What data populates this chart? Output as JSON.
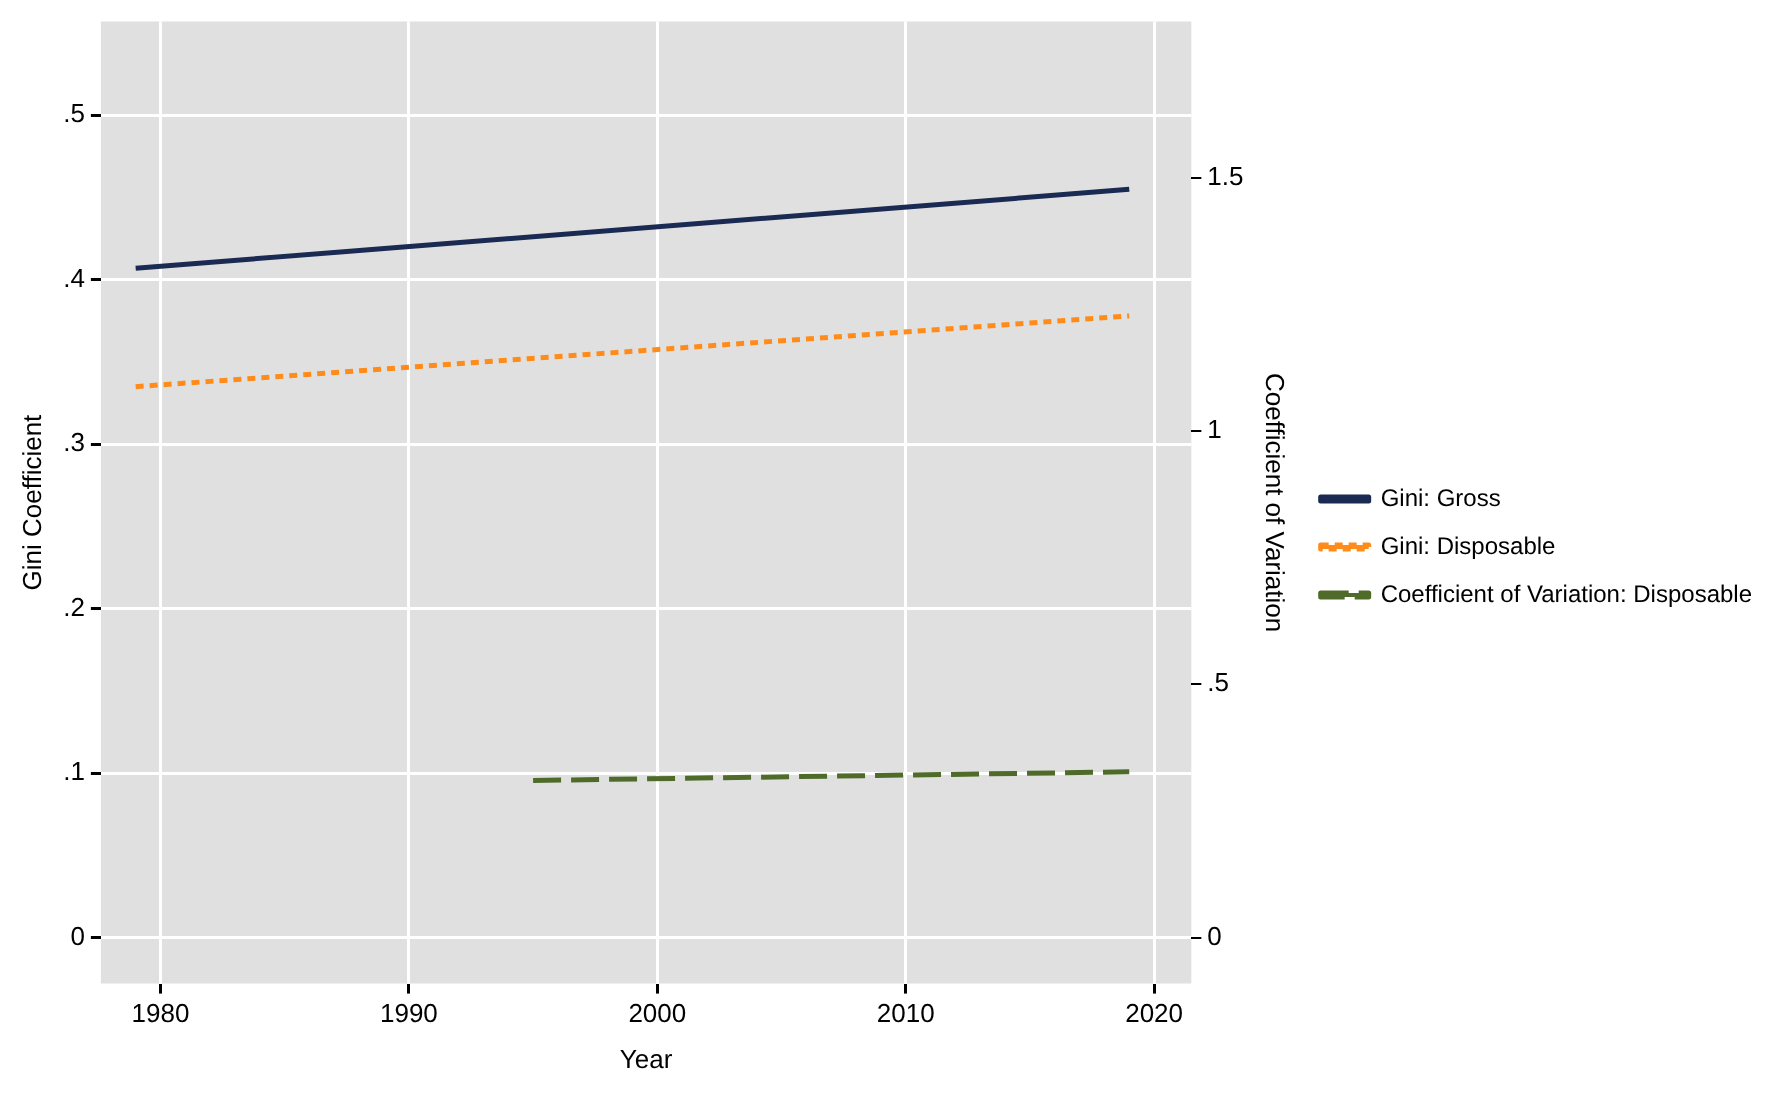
{
  "chart_data": {
    "type": "line",
    "xlabel": "Year",
    "ylabel": "Gini Coefficient",
    "y2label": "Coefficient of Variation",
    "xlim": [
      1977.6,
      2021.5
    ],
    "xticks": [
      1980,
      1990,
      2000,
      2010,
      2020
    ],
    "ylim": [
      -0.028,
      0.557
    ],
    "yticks": [
      {
        "value": 0,
        "label": "0"
      },
      {
        "value": 0.1,
        "label": ".1"
      },
      {
        "value": 0.2,
        "label": ".2"
      },
      {
        "value": 0.3,
        "label": ".3"
      },
      {
        "value": 0.4,
        "label": ".4"
      },
      {
        "value": 0.5,
        "label": ".5"
      }
    ],
    "y2lim": [
      -0.091,
      1.808
    ],
    "y2ticks": [
      {
        "value": 0,
        "label": "0"
      },
      {
        "value": 0.5,
        "label": ".5"
      },
      {
        "value": 1,
        "label": "1"
      },
      {
        "value": 1.5,
        "label": "1.5"
      }
    ],
    "grid": true,
    "legend": "right",
    "marker": "none",
    "series": [
      {
        "name": "Gini: Gross",
        "color": "#1a2a52",
        "line_style": "solid",
        "x": [
          1979,
          2019
        ],
        "values": [
          0.407,
          0.455
        ]
      },
      {
        "name": "Gini: Disposable",
        "color": "#ff8c1a",
        "line_style": "dotted",
        "x": [
          1979,
          2019
        ],
        "values": [
          0.335,
          0.378
        ]
      },
      {
        "name": "Coefficient of Variation: Disposable",
        "color": "#4e6b2a",
        "line_style": "dashed",
        "axis": "y2",
        "x": [
          1995,
          2019
        ],
        "values": [
          0.31,
          0.327
        ]
      }
    ]
  }
}
